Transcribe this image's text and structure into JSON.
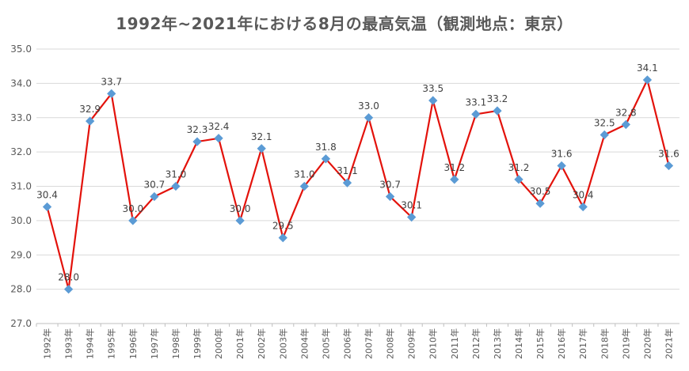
{
  "chart_data": {
    "type": "line",
    "title": "1992年~2021年における8月の最高気温（観測地点：東京）",
    "xlabel": "",
    "ylabel": "",
    "ylim": [
      27.0,
      35.0
    ],
    "y_ticks": [
      "27.0",
      "28.0",
      "29.0",
      "30.0",
      "31.0",
      "32.0",
      "33.0",
      "34.0",
      "35.0"
    ],
    "grid": true,
    "legend": "none",
    "categories": [
      "1992年",
      "1993年",
      "1994年",
      "1995年",
      "1996年",
      "1997年",
      "1998年",
      "1999年",
      "2000年",
      "2001年",
      "2002年",
      "2003年",
      "2004年",
      "2005年",
      "2006年",
      "2007年",
      "2008年",
      "2009年",
      "2010年",
      "2011年",
      "2012年",
      "2013年",
      "2014年",
      "2015年",
      "2016年",
      "2017年",
      "2018年",
      "2019年",
      "2020年",
      "2021年"
    ],
    "series": [
      {
        "values": [
          30.4,
          28.0,
          32.9,
          33.7,
          30.0,
          30.7,
          31.0,
          32.3,
          32.4,
          30.0,
          32.1,
          29.5,
          31.0,
          31.8,
          31.1,
          33.0,
          30.7,
          30.1,
          33.5,
          31.2,
          33.1,
          33.2,
          31.2,
          30.5,
          31.6,
          30.4,
          32.5,
          32.8,
          34.1,
          31.6
        ],
        "labels": [
          "30.4",
          "28.0",
          "32.9",
          "33.7",
          "30.0",
          "30.7",
          "31.0",
          "32.3",
          "32.4",
          "30.0",
          "32.1",
          "29.5",
          "31.0",
          "31.8",
          "31.1",
          "33.0",
          "30.7",
          "30.1",
          "33.5",
          "31.2",
          "33.1",
          "33.2",
          "31.2",
          "30.5",
          "31.6",
          "30.4",
          "32.5",
          "32.8",
          "34.1",
          "31.6"
        ],
        "line_color": "#e3120b",
        "marker_color": "#5b9bd5"
      }
    ],
    "colors": {
      "grid": "#d9d9d9",
      "axis": "#bfbfbf"
    }
  }
}
